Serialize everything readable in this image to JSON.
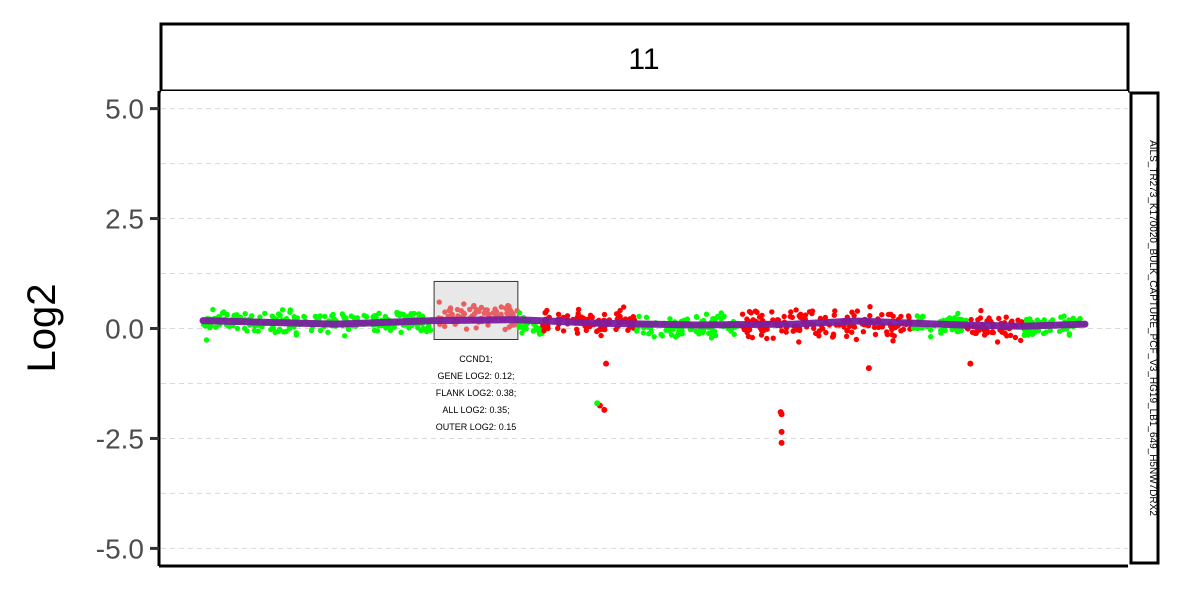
{
  "chart_data": {
    "type": "scatter",
    "facet_label": "11",
    "ylabel": "Log2",
    "sample_label": "AILS_TR273_K170020_BULK_CAPTURE_PCF_V3_HG19_LB1_649_H5NW7DRX2",
    "ylim": [
      -5.4,
      5.4
    ],
    "yticks": [
      5.0,
      2.5,
      0.0,
      -2.5,
      -5.0
    ],
    "ytick_labels": [
      "5.0",
      "2.5",
      "0.0",
      "-2.5",
      "-5.0"
    ],
    "grid": true,
    "colors": {
      "normal": "#00ff00",
      "gain": "#ff0000",
      "gene_region": "#e86060",
      "segment": "#7a1fa0",
      "highlight_box": "#e8e8e8"
    },
    "segments": [
      {
        "name": "green",
        "x": [
          0.0,
          0.262
        ],
        "color": "normal",
        "y_mean": 0.15,
        "sd": 0.2
      },
      {
        "name": "gene",
        "x": [
          0.262,
          0.357
        ],
        "color": "gene_region",
        "y_mean": 0.3,
        "sd": 0.22
      },
      {
        "name": "green",
        "x": [
          0.357,
          0.385
        ],
        "color": "normal",
        "y_mean": 0.05,
        "sd": 0.25
      },
      {
        "name": "red",
        "x": [
          0.385,
          0.49
        ],
        "color": "gain",
        "y_mean": 0.15,
        "sd": 0.25
      },
      {
        "name": "green",
        "x": [
          0.49,
          0.61
        ],
        "color": "normal",
        "y_mean": 0.05,
        "sd": 0.2
      },
      {
        "name": "red",
        "x": [
          0.61,
          0.805
        ],
        "color": "gain",
        "y_mean": 0.1,
        "sd": 0.25
      },
      {
        "name": "green",
        "x": [
          0.805,
          0.865
        ],
        "color": "normal",
        "y_mean": 0.1,
        "sd": 0.2
      },
      {
        "name": "red",
        "x": [
          0.865,
          0.93
        ],
        "color": "gain",
        "y_mean": 0.05,
        "sd": 0.2
      },
      {
        "name": "green",
        "x": [
          0.93,
          1.0
        ],
        "color": "normal",
        "y_mean": 0.05,
        "sd": 0.2
      }
    ],
    "outliers": [
      {
        "x": 0.45,
        "y": -1.75,
        "color": "gain"
      },
      {
        "x": 0.455,
        "y": -1.85,
        "color": "gain"
      },
      {
        "x": 0.447,
        "y": -1.7,
        "color": "normal"
      },
      {
        "x": 0.655,
        "y": -1.9,
        "color": "gain"
      },
      {
        "x": 0.656,
        "y": -1.95,
        "color": "gain"
      },
      {
        "x": 0.656,
        "y": -2.35,
        "color": "gain"
      },
      {
        "x": 0.656,
        "y": -2.6,
        "color": "gain"
      },
      {
        "x": 0.457,
        "y": -0.8,
        "color": "gain"
      },
      {
        "x": 0.755,
        "y": -0.9,
        "color": "gain"
      },
      {
        "x": 0.87,
        "y": -0.8,
        "color": "gain"
      }
    ],
    "segment_line": [
      {
        "x": 0.0,
        "y": 0.18
      },
      {
        "x": 0.15,
        "y": 0.1
      },
      {
        "x": 0.262,
        "y": 0.18
      },
      {
        "x": 0.357,
        "y": 0.2
      },
      {
        "x": 0.45,
        "y": 0.12
      },
      {
        "x": 0.56,
        "y": 0.08
      },
      {
        "x": 0.67,
        "y": 0.1
      },
      {
        "x": 0.74,
        "y": 0.17
      },
      {
        "x": 0.86,
        "y": 0.08
      },
      {
        "x": 0.93,
        "y": 0.05
      },
      {
        "x": 1.0,
        "y": 0.1
      }
    ],
    "gene_box": {
      "x": [
        0.262,
        0.357
      ],
      "y": [
        -0.25,
        1.07
      ]
    },
    "annotation": [
      "CCND1;",
      "GENE LOG2: 0.12;",
      "FLANK LOG2: 0.38;",
      "ALL LOG2: 0.35;",
      "OUTER LOG2: 0.15"
    ]
  }
}
